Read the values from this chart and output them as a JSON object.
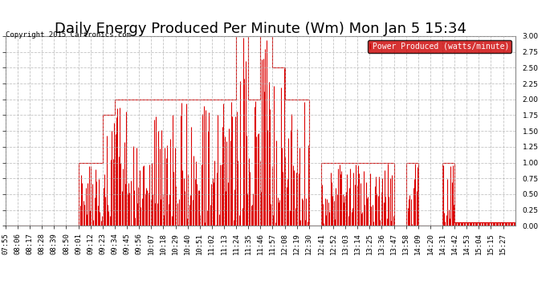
{
  "title": "Daily Energy Produced Per Minute (Wm) Mon Jan 5 15:34",
  "copyright": "Copyright 2015 Cartronics.com",
  "legend_label": "Power Produced (watts/minute)",
  "legend_bg": "#cc0000",
  "legend_fg": "#ffffff",
  "ylim": [
    0.0,
    3.0
  ],
  "yticks": [
    0.0,
    0.25,
    0.5,
    0.75,
    1.0,
    1.25,
    1.5,
    1.75,
    2.0,
    2.25,
    2.5,
    2.75,
    3.0
  ],
  "line_color": "#dd0000",
  "bg_color": "#ffffff",
  "grid_color": "#aaaaaa",
  "title_fontsize": 13,
  "tick_label_fontsize": 6.5,
  "x_labels": [
    "07:55",
    "08:06",
    "08:17",
    "08:28",
    "08:39",
    "08:50",
    "09:01",
    "09:12",
    "09:23",
    "09:34",
    "09:45",
    "09:56",
    "10:07",
    "10:18",
    "10:29",
    "10:40",
    "10:51",
    "11:02",
    "11:13",
    "11:24",
    "11:35",
    "11:46",
    "11:57",
    "12:08",
    "12:19",
    "12:30",
    "12:41",
    "12:52",
    "13:03",
    "13:14",
    "13:25",
    "13:36",
    "13:47",
    "13:58",
    "14:09",
    "14:20",
    "14:31",
    "14:42",
    "14:53",
    "15:04",
    "15:15",
    "15:27"
  ],
  "envelope": [
    0.0,
    0.0,
    0.0,
    0.0,
    0.0,
    0.0,
    1.0,
    1.0,
    1.75,
    2.0,
    2.0,
    2.0,
    2.0,
    2.0,
    2.0,
    2.0,
    2.0,
    2.0,
    2.0,
    3.0,
    2.0,
    3.0,
    2.5,
    2.0,
    2.0,
    0.0,
    1.0,
    1.0,
    1.0,
    1.0,
    1.0,
    1.0,
    0.0,
    1.0,
    0.0,
    0.0,
    1.0,
    0.05,
    0.05,
    0.05,
    0.05,
    0.05
  ],
  "vlines_per_interval": 11,
  "last_x_label": "15:27"
}
